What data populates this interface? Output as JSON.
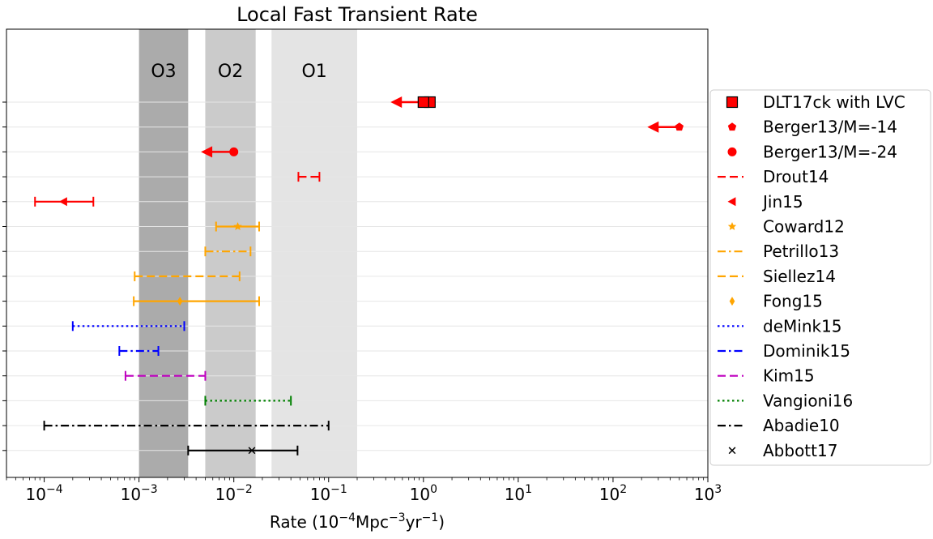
{
  "chart_data": {
    "type": "errorbar",
    "title": "Local Fast Transient Rate",
    "xlabel": {
      "base": "Rate (10",
      "exp1": "−4",
      "mid": "Mpc",
      "exp2": "−3",
      "mid2": "yr",
      "exp3": "−1",
      "end": ")"
    },
    "xscale": "log",
    "xlim": [
      4e-05,
      1000
    ],
    "xticks": [
      {
        "value": 0.0001,
        "mantissa": "10",
        "exp": "−4"
      },
      {
        "value": 0.001,
        "mantissa": "10",
        "exp": "−3"
      },
      {
        "value": 0.01,
        "mantissa": "10",
        "exp": "−2"
      },
      {
        "value": 0.1,
        "mantissa": "10",
        "exp": "−1"
      },
      {
        "value": 1,
        "mantissa": "10",
        "exp": "0"
      },
      {
        "value": 10,
        "mantissa": "10",
        "exp": "1"
      },
      {
        "value": 100,
        "mantissa": "10",
        "exp": "2"
      },
      {
        "value": 1000,
        "mantissa": "10",
        "exp": "3"
      }
    ],
    "grid": "horizontal",
    "legend_position": "right",
    "bands": [
      {
        "label": "O3",
        "x0": 0.001,
        "x1": 0.0033,
        "color": "#ababab"
      },
      {
        "label": "O2",
        "x0": 0.005,
        "x1": 0.017,
        "color": "#cbcbcb"
      },
      {
        "label": "O1",
        "x0": 0.025,
        "x1": 0.2,
        "color": "#e4e4e4"
      }
    ],
    "series": [
      {
        "name": "DLT17ck with LVC",
        "color": "#ff0000",
        "dash": "solid",
        "marker": "square",
        "value": 1.0,
        "low": 0.45,
        "high": 1.05,
        "style": "upper_limit"
      },
      {
        "name": "Berger13/M=-14",
        "color": "#ff0000",
        "dash": "solid",
        "marker": "pentagon",
        "value": 500,
        "low": 230,
        "high": 500,
        "style": "upper_limit"
      },
      {
        "name": "Berger13/M=-24",
        "color": "#ff0000",
        "dash": "solid",
        "marker": "circle",
        "value": 0.01,
        "low": 0.0045,
        "high": 0.01,
        "style": "upper_limit"
      },
      {
        "name": "Drout14",
        "color": "#ff0000",
        "dash": "dashed",
        "marker": "none",
        "value": 0.062,
        "low": 0.048,
        "high": 0.08,
        "style": "range"
      },
      {
        "name": "Jin15",
        "color": "#ff0000",
        "dash": "solid",
        "marker": "triangle-left",
        "value": 0.00016,
        "low": 8e-05,
        "high": 0.00033,
        "style": "range"
      },
      {
        "name": "Coward12",
        "color": "#ffa500",
        "dash": "solid",
        "marker": "star",
        "value": 0.011,
        "low": 0.0065,
        "high": 0.0185,
        "style": "range"
      },
      {
        "name": "Petrillo13",
        "color": "#ffa500",
        "dash": "dashdot",
        "marker": "none",
        "value": 0.009,
        "low": 0.005,
        "high": 0.015,
        "style": "range"
      },
      {
        "name": "Siellez14",
        "color": "#ffa500",
        "dash": "dashed",
        "marker": "none",
        "value": 0.0035,
        "low": 0.0009,
        "high": 0.0115,
        "style": "range"
      },
      {
        "name": "Fong15",
        "color": "#ffa500",
        "dash": "solid",
        "marker": "diamond",
        "value": 0.0027,
        "low": 0.00088,
        "high": 0.0185,
        "style": "range"
      },
      {
        "name": "deMink15",
        "color": "#0000ff",
        "dash": "dotted",
        "marker": "none",
        "value": 0.0008,
        "low": 0.0002,
        "high": 0.003,
        "style": "range"
      },
      {
        "name": "Dominik15",
        "color": "#0000ff",
        "dash": "dashdot",
        "marker": "none",
        "value": 0.001,
        "low": 0.00062,
        "high": 0.0016,
        "style": "range"
      },
      {
        "name": "Kim15",
        "color": "#bf00bf",
        "dash": "dashed",
        "marker": "none",
        "value": 0.002,
        "low": 0.00072,
        "high": 0.005,
        "style": "range"
      },
      {
        "name": "Vangioni16",
        "color": "#008000",
        "dash": "dotted",
        "marker": "none",
        "value": 0.015,
        "low": 0.005,
        "high": 0.04,
        "style": "range"
      },
      {
        "name": "Abadie10",
        "color": "#000000",
        "dash": "dashdot",
        "marker": "none",
        "value": 0.01,
        "low": 0.0001,
        "high": 0.1,
        "style": "range"
      },
      {
        "name": "Abbott17",
        "color": "#000000",
        "dash": "solid",
        "marker": "x",
        "value": 0.0155,
        "low": 0.0033,
        "high": 0.047,
        "style": "range"
      }
    ]
  }
}
